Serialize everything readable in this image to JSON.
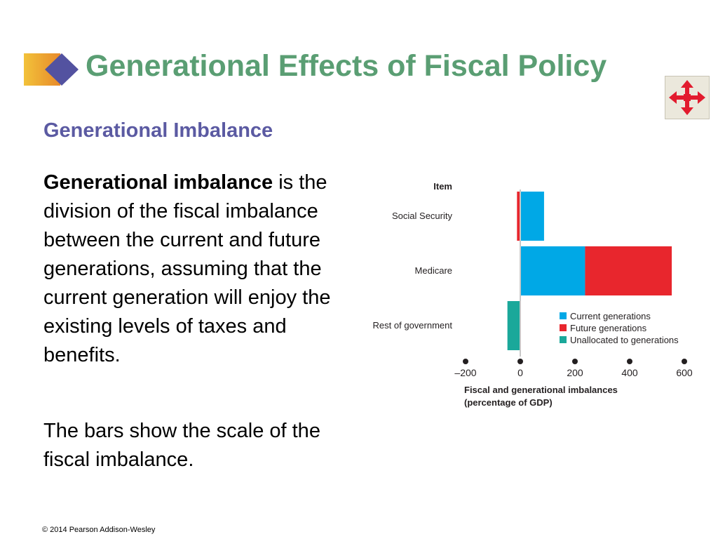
{
  "slide": {
    "title": "Generational Effects of Fiscal Policy",
    "subtitle": "Generational Imbalance",
    "body_term": "Generational imbalance",
    "body_rest": " is the division of the fiscal imbalance between the current and future generations, assuming that the current generation will enjoy the existing levels of taxes and benefits.",
    "body_para2": "The bars show the scale of the fiscal imbalance.",
    "copyright": "© 2014 Pearson Addison-Wesley"
  },
  "colors": {
    "title": "#5a9e73",
    "subtitle": "#5b5aa2",
    "current": "#00a8e6",
    "future": "#e8262d",
    "unallocated": "#1aa89a"
  },
  "icons": {
    "title_marker": "diamond-arrow-icon",
    "nav": "four-way-arrows-icon"
  },
  "chart_data": {
    "type": "bar",
    "orientation": "horizontal",
    "stacked": true,
    "category_header": "Item",
    "categories": [
      "Social Security",
      "Medicare",
      "Rest of government"
    ],
    "series": [
      {
        "name": "Current generations",
        "color": "#00a8e6",
        "values": [
          87,
          237,
          0
        ]
      },
      {
        "name": "Future generations",
        "color": "#e8262d",
        "values": [
          -12,
          317,
          0
        ]
      },
      {
        "name": "Unallocated to generations",
        "color": "#1aa89a",
        "values": [
          0,
          0,
          -47
        ]
      }
    ],
    "xticks": [
      -200,
      0,
      200,
      400,
      600
    ],
    "xlim": [
      -200,
      600
    ],
    "xlabel": [
      "Fiscal and generational imbalances",
      "(percentage of GDP)"
    ],
    "legend_position": "lower-right",
    "grid": false
  }
}
